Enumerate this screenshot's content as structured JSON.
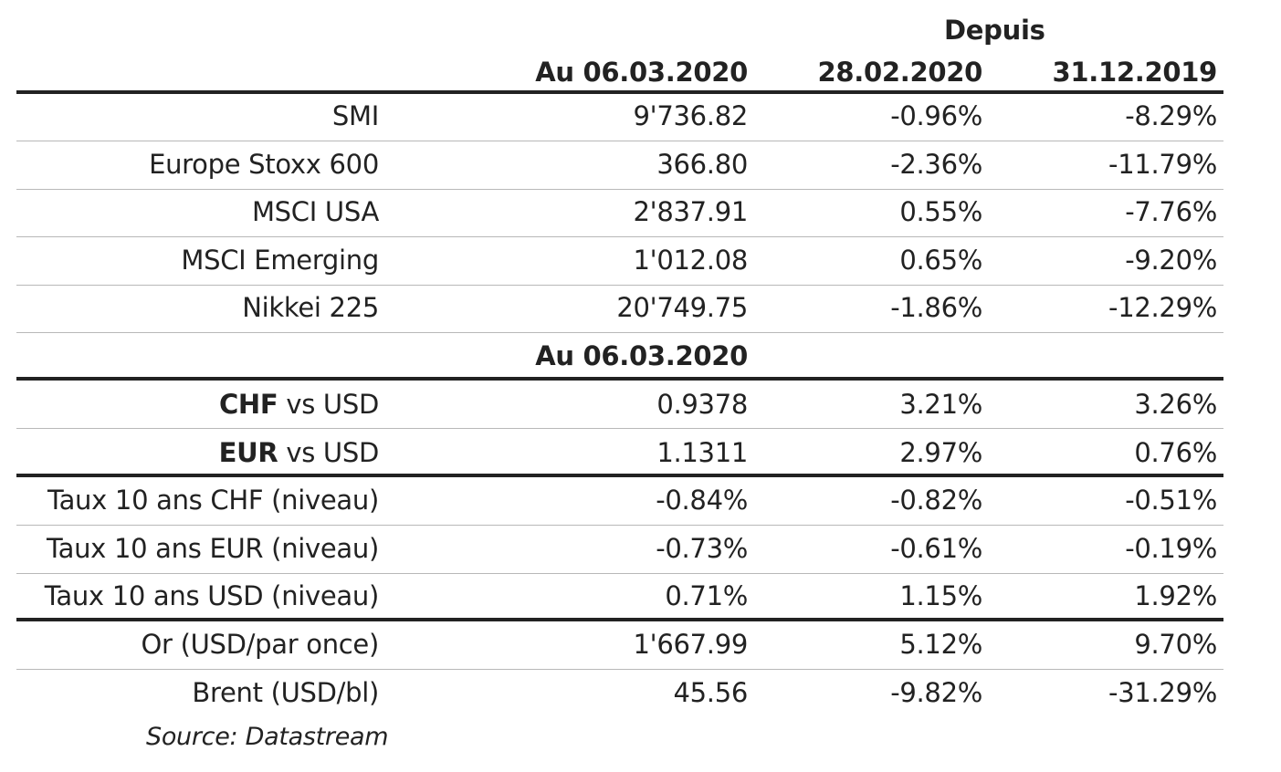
{
  "chart_data": {
    "type": "table",
    "header": {
      "group_label": "Depuis",
      "col_value": "Au 06.03.2020",
      "col_since_1": "28.02.2020",
      "col_since_2": "31.12.2019"
    },
    "equities": [
      {
        "label": "SMI",
        "value": "9'736.82",
        "since_1": "-0.96%",
        "since_2": "-8.29%"
      },
      {
        "label": "Europe Stoxx 600",
        "value": "366.80",
        "since_1": "-2.36%",
        "since_2": "-11.79%"
      },
      {
        "label": "MSCI USA",
        "value": "2'837.91",
        "since_1": "0.55%",
        "since_2": "-7.76%"
      },
      {
        "label": "MSCI Emerging",
        "value": "1'012.08",
        "since_1": "0.65%",
        "since_2": "-9.20%"
      },
      {
        "label": "Nikkei 225",
        "value": "20'749.75",
        "since_1": "-1.86%",
        "since_2": "-12.29%"
      }
    ],
    "mid_header": "Au 06.03.2020",
    "fx": [
      {
        "currency": "CHF",
        "suffix": " vs USD",
        "value": "0.9378",
        "since_1": "3.21%",
        "since_2": "3.26%"
      },
      {
        "currency": "EUR",
        "suffix": " vs USD",
        "value": "1.1311",
        "since_1": "2.97%",
        "since_2": "0.76%"
      }
    ],
    "rates": [
      {
        "label": "Taux 10 ans CHF (niveau)",
        "value": "-0.84%",
        "since_1": "-0.82%",
        "since_2": "-0.51%"
      },
      {
        "label": "Taux 10 ans EUR (niveau)",
        "value": "-0.73%",
        "since_1": "-0.61%",
        "since_2": "-0.19%"
      },
      {
        "label": "Taux 10 ans USD (niveau)",
        "value": "0.71%",
        "since_1": "1.15%",
        "since_2": "1.92%"
      }
    ],
    "commodities": [
      {
        "label": "Or (USD/par once)",
        "value": "1'667.99",
        "since_1": "5.12%",
        "since_2": "9.70%"
      },
      {
        "label": "Brent (USD/bl)",
        "value": "45.56",
        "since_1": "-9.82%",
        "since_2": "-31.29%"
      }
    ],
    "source": "Source: Datastream"
  }
}
